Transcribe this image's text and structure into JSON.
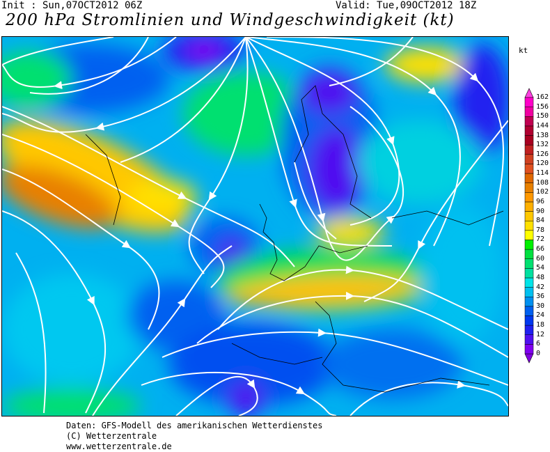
{
  "header": {
    "init": "Init : Sun,07OCT2012 06Z",
    "valid": "Valid: Tue,09OCT2012 18Z",
    "title": "200 hPa Stromlinien und Windgeschwindigkeit (kt)"
  },
  "colorbar": {
    "unit": "kt",
    "labels": [
      "0",
      "6",
      "12",
      "18",
      "24",
      "30",
      "36",
      "42",
      "48",
      "54",
      "60",
      "66",
      "72",
      "78",
      "84",
      "90",
      "96",
      "102",
      "108",
      "114",
      "120",
      "126",
      "132",
      "138",
      "144",
      "150",
      "156",
      "162"
    ],
    "colors": [
      "#8000f0",
      "#5010f0",
      "#2020f0",
      "#0038f0",
      "#0060f0",
      "#0090f0",
      "#00c0f0",
      "#00e4e8",
      "#00e0a0",
      "#00e070",
      "#00e040",
      "#00f000",
      "#ffff00",
      "#ffe000",
      "#ffc800",
      "#ffb000",
      "#ff9800",
      "#e88000",
      "#e06800",
      "#e05020",
      "#d04020",
      "#c02020",
      "#a80020",
      "#b00030",
      "#c00050",
      "#f000a0",
      "#ff00c8"
    ],
    "arrow_low": "#8000e0",
    "arrow_high": "#ff40e0"
  },
  "footer": {
    "line1": "Daten: GFS-Modell des amerikanischen Wetterdienstes",
    "line2": "(C) Wetterzentrale",
    "line3": "www.wetterzentrale.de"
  }
}
